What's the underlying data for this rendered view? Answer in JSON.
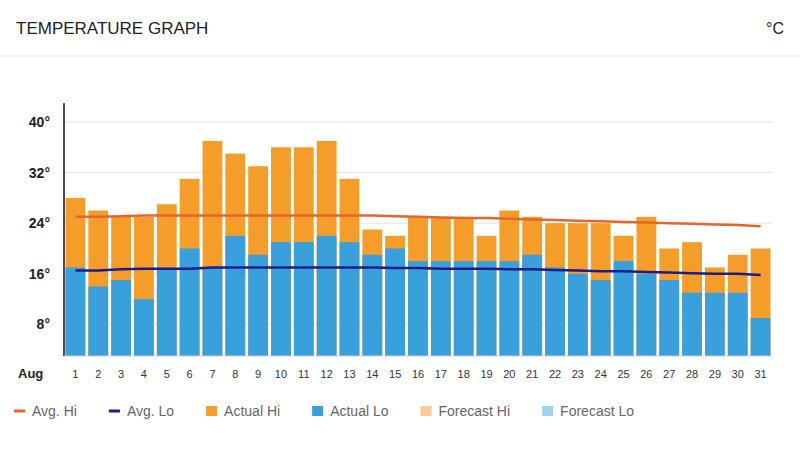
{
  "chart_data": {
    "type": "bar",
    "title": "TEMPERATURE GRAPH",
    "ylabel": "°C",
    "xlabel": "Aug",
    "categories": [
      "1",
      "2",
      "3",
      "4",
      "5",
      "6",
      "7",
      "8",
      "9",
      "10",
      "11",
      "12",
      "13",
      "14",
      "15",
      "16",
      "17",
      "18",
      "19",
      "20",
      "21",
      "22",
      "23",
      "24",
      "25",
      "26",
      "27",
      "28",
      "29",
      "30",
      "31"
    ],
    "series": [
      {
        "name": "Avg. Hi",
        "type": "line",
        "color": "#e8642c",
        "values": [
          25,
          25,
          25.1,
          25.2,
          25.2,
          25.2,
          25.2,
          25.2,
          25.2,
          25.2,
          25.2,
          25.2,
          25.2,
          25.2,
          25.1,
          25,
          24.9,
          24.8,
          24.8,
          24.7,
          24.6,
          24.5,
          24.4,
          24.3,
          24.2,
          24.1,
          24,
          23.9,
          23.8,
          23.7,
          23.5
        ]
      },
      {
        "name": "Avg. Lo",
        "type": "line",
        "color": "#1c1c8a",
        "values": [
          16.5,
          16.5,
          16.7,
          16.8,
          16.8,
          16.8,
          17,
          17,
          17,
          17,
          17,
          17,
          17,
          17,
          16.9,
          16.9,
          16.8,
          16.8,
          16.8,
          16.7,
          16.7,
          16.6,
          16.5,
          16.4,
          16.4,
          16.3,
          16.2,
          16.1,
          16,
          16,
          15.8
        ]
      },
      {
        "name": "Actual Hi",
        "type": "bar",
        "color": "#f59d2a",
        "values": [
          28,
          26,
          25,
          25,
          27,
          31,
          37,
          35,
          33,
          36,
          36,
          37,
          31,
          23,
          22,
          25,
          25,
          25,
          22,
          26,
          25,
          24,
          24,
          24,
          22,
          25,
          20,
          21,
          17,
          19,
          20
        ]
      },
      {
        "name": "Actual Lo",
        "type": "bar",
        "color": "#3aa0dc",
        "values": [
          17,
          14,
          15,
          12,
          17,
          20,
          17,
          22,
          19,
          21,
          21,
          22,
          21,
          19,
          20,
          18,
          18,
          18,
          18,
          18,
          19,
          17,
          16,
          15,
          18,
          16,
          15,
          13,
          13,
          13,
          9
        ]
      },
      {
        "name": "Forecast Hi",
        "type": "bar",
        "color": "#fcc99a",
        "values": [
          null,
          null,
          null,
          null,
          null,
          null,
          null,
          null,
          null,
          null,
          null,
          null,
          null,
          null,
          null,
          null,
          null,
          null,
          null,
          null,
          null,
          null,
          null,
          null,
          null,
          null,
          null,
          null,
          null,
          null,
          null
        ]
      },
      {
        "name": "Forecast Lo",
        "type": "bar",
        "color": "#9fd3ef",
        "values": [
          null,
          null,
          null,
          null,
          null,
          null,
          null,
          null,
          null,
          null,
          null,
          null,
          null,
          null,
          null,
          null,
          null,
          null,
          null,
          null,
          null,
          null,
          null,
          null,
          null,
          null,
          null,
          null,
          null,
          null,
          null
        ]
      }
    ],
    "ylim": [
      3,
      43
    ],
    "yticks": [
      {
        "value": 8,
        "label": "8°"
      },
      {
        "value": 16,
        "label": "16°"
      },
      {
        "value": 24,
        "label": "24°"
      },
      {
        "value": 32,
        "label": "32°"
      },
      {
        "value": 40,
        "label": "40°"
      }
    ],
    "grid": true,
    "stacked": false,
    "legend": "bottom"
  }
}
